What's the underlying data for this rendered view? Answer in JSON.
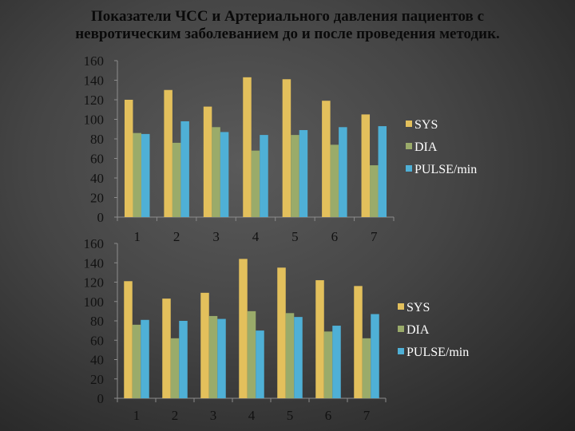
{
  "title": {
    "line1": "Показатели ЧСС и Артериального давления пациентов с",
    "line2": "невротическим заболеванием до и после проведения методик."
  },
  "colors": {
    "SYS": "#e3c05c",
    "DIA": "#9aab6a",
    "PULSE/min": "#4fb0d6"
  },
  "chart_data": [
    {
      "type": "bar",
      "categories": [
        "1",
        "2",
        "3",
        "4",
        "5",
        "6",
        "7"
      ],
      "yticks": [
        "0",
        "20",
        "40",
        "60",
        "80",
        "100",
        "120",
        "140",
        "160"
      ],
      "ylim": [
        0,
        160
      ],
      "legend_position": "right",
      "grid": false,
      "series": [
        {
          "name": "SYS",
          "values": [
            120,
            130,
            113,
            143,
            141,
            119,
            105
          ]
        },
        {
          "name": "DIA",
          "values": [
            86,
            76,
            92,
            68,
            84,
            74,
            53
          ]
        },
        {
          "name": "PULSE/min",
          "values": [
            85,
            98,
            87,
            84,
            89,
            92,
            93
          ]
        }
      ]
    },
    {
      "type": "bar",
      "categories": [
        "1",
        "2",
        "3",
        "4",
        "5",
        "6",
        "7"
      ],
      "yticks": [
        "0",
        "20",
        "40",
        "60",
        "80",
        "100",
        "120",
        "140",
        "160"
      ],
      "ylim": [
        0,
        160
      ],
      "legend_position": "right",
      "grid": false,
      "series": [
        {
          "name": "SYS",
          "values": [
            121,
            103,
            109,
            144,
            135,
            122,
            116
          ]
        },
        {
          "name": "DIA",
          "values": [
            76,
            62,
            85,
            90,
            88,
            69,
            62
          ]
        },
        {
          "name": "PULSE/min",
          "values": [
            81,
            80,
            82,
            70,
            84,
            75,
            87
          ]
        }
      ]
    }
  ]
}
